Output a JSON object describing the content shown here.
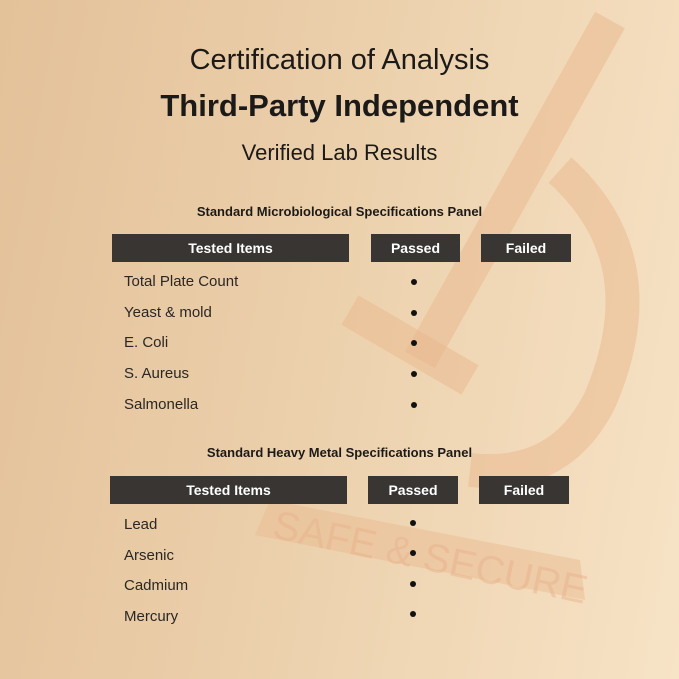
{
  "header": {
    "title": "Certification of Analysis",
    "subtitle": "Third-Party Independent",
    "tagline": "Verified Lab Results"
  },
  "watermark": {
    "text": "SAFE & SECURE",
    "icon": "microscope-icon"
  },
  "panels": [
    {
      "title": "Standard Microbiological Specifications Panel",
      "columns": [
        "Tested Items",
        "Passed",
        "Failed"
      ],
      "rows": [
        {
          "item": "Total Plate Count",
          "result": "passed"
        },
        {
          "item": "Yeast & mold",
          "result": "passed"
        },
        {
          "item": "E. Coli",
          "result": "passed"
        },
        {
          "item": "S. Aureus",
          "result": "passed"
        },
        {
          "item": "Salmonella",
          "result": "passed"
        }
      ]
    },
    {
      "title": "Standard Heavy Metal Specifications Panel",
      "columns": [
        "Tested Items",
        "Passed",
        "Failed"
      ],
      "rows": [
        {
          "item": "Lead",
          "result": "passed"
        },
        {
          "item": "Arsenic",
          "result": "passed"
        },
        {
          "item": "Cadmium",
          "result": "passed"
        },
        {
          "item": "Mercury",
          "result": "passed"
        }
      ]
    }
  ],
  "colors": {
    "header_bar": "#383533",
    "watermark": "#e8b48c"
  }
}
